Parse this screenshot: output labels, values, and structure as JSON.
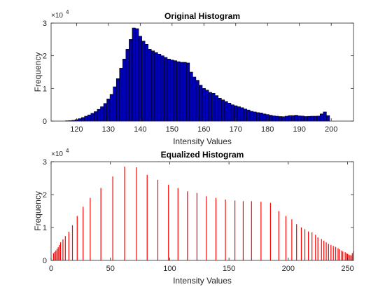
{
  "colors": {
    "background": "#ffffff",
    "original_fill": "#0000b4",
    "original_edge": "#000000",
    "equalized_stem": "#ff0000",
    "axis": "#262626"
  },
  "chart_data": [
    {
      "type": "bar",
      "title": "Original Histogram",
      "xlabel": "Intensity Values",
      "ylabel": "Frequency",
      "xlim": [
        112,
        207
      ],
      "ylim": [
        0,
        30000
      ],
      "xticks": [
        120,
        130,
        140,
        150,
        160,
        170,
        180,
        190,
        200
      ],
      "yticks": [
        0,
        1,
        2,
        3
      ],
      "y_exponent": "×10",
      "y_exponent_power": "4",
      "grid": false,
      "x": [
        117,
        118,
        119,
        120,
        121,
        122,
        123,
        124,
        125,
        126,
        127,
        128,
        129,
        130,
        131,
        132,
        133,
        134,
        135,
        136,
        137,
        138,
        139,
        140,
        141,
        142,
        143,
        144,
        145,
        146,
        147,
        148,
        149,
        150,
        151,
        152,
        153,
        154,
        155,
        156,
        157,
        158,
        159,
        160,
        161,
        162,
        163,
        164,
        165,
        166,
        167,
        168,
        169,
        170,
        171,
        172,
        173,
        174,
        175,
        176,
        177,
        178,
        179,
        180,
        181,
        182,
        183,
        184,
        185,
        186,
        187,
        188,
        189,
        190,
        191,
        192,
        193,
        194,
        195,
        196,
        197,
        198,
        199
      ],
      "values": [
        100,
        150,
        250,
        450,
        750,
        1100,
        1500,
        1900,
        2400,
        2900,
        3600,
        4400,
        5400,
        6800,
        8200,
        10500,
        13000,
        16200,
        19000,
        22000,
        25000,
        28500,
        28300,
        26000,
        24500,
        23500,
        22000,
        21500,
        21000,
        20500,
        20000,
        19500,
        19000,
        18700,
        18500,
        18200,
        18000,
        18000,
        17800,
        15000,
        13500,
        12500,
        11000,
        10000,
        9500,
        8800,
        8500,
        7800,
        7000,
        6500,
        6000,
        5500,
        5000,
        4700,
        4400,
        4100,
        3700,
        3400,
        3000,
        2800,
        2600,
        2500,
        2200,
        2000,
        1800,
        1600,
        1500,
        1400,
        1350,
        1500,
        1700,
        1700,
        1800,
        1600,
        1550,
        1400,
        1450,
        1500,
        1500,
        1550,
        2200,
        2800,
        1700
      ]
    },
    {
      "type": "bar",
      "title": "Equalized Histogram",
      "xlabel": "Intensity Values",
      "ylabel": "Frequency",
      "xlim": [
        0,
        255
      ],
      "ylim": [
        0,
        30000
      ],
      "xticks": [
        0,
        50,
        100,
        150,
        200,
        250
      ],
      "yticks": [
        0,
        1,
        2,
        3
      ],
      "y_exponent": "×10",
      "y_exponent_power": "4",
      "grid": false,
      "x": [
        2,
        3,
        4,
        5,
        6,
        7,
        8,
        10,
        12,
        15,
        18,
        22,
        27,
        33,
        42,
        52,
        62,
        72,
        81,
        90,
        99,
        107,
        115,
        123,
        131,
        139,
        147,
        155,
        162,
        169,
        177,
        185,
        192,
        198,
        203,
        207,
        211,
        214,
        217,
        220,
        223,
        225,
        228,
        230,
        232,
        234,
        236,
        238,
        240,
        242,
        243,
        245,
        246,
        248,
        249,
        250,
        251,
        252,
        253,
        254,
        255
      ],
      "values": [
        2200,
        2600,
        3000,
        3500,
        4000,
        4700,
        5500,
        6400,
        7400,
        8700,
        10700,
        13500,
        16300,
        19000,
        22000,
        25500,
        28500,
        28300,
        26000,
        24500,
        23000,
        22000,
        21000,
        20500,
        19500,
        19000,
        18500,
        18200,
        18000,
        18000,
        17800,
        17500,
        15000,
        13500,
        12500,
        11000,
        10000,
        9500,
        8800,
        8500,
        7800,
        7000,
        6500,
        6000,
        5500,
        5000,
        4700,
        4400,
        4100,
        3700,
        3400,
        3000,
        2700,
        2500,
        2200,
        2000,
        1800,
        1600,
        1500,
        2200,
        2800
      ]
    }
  ]
}
